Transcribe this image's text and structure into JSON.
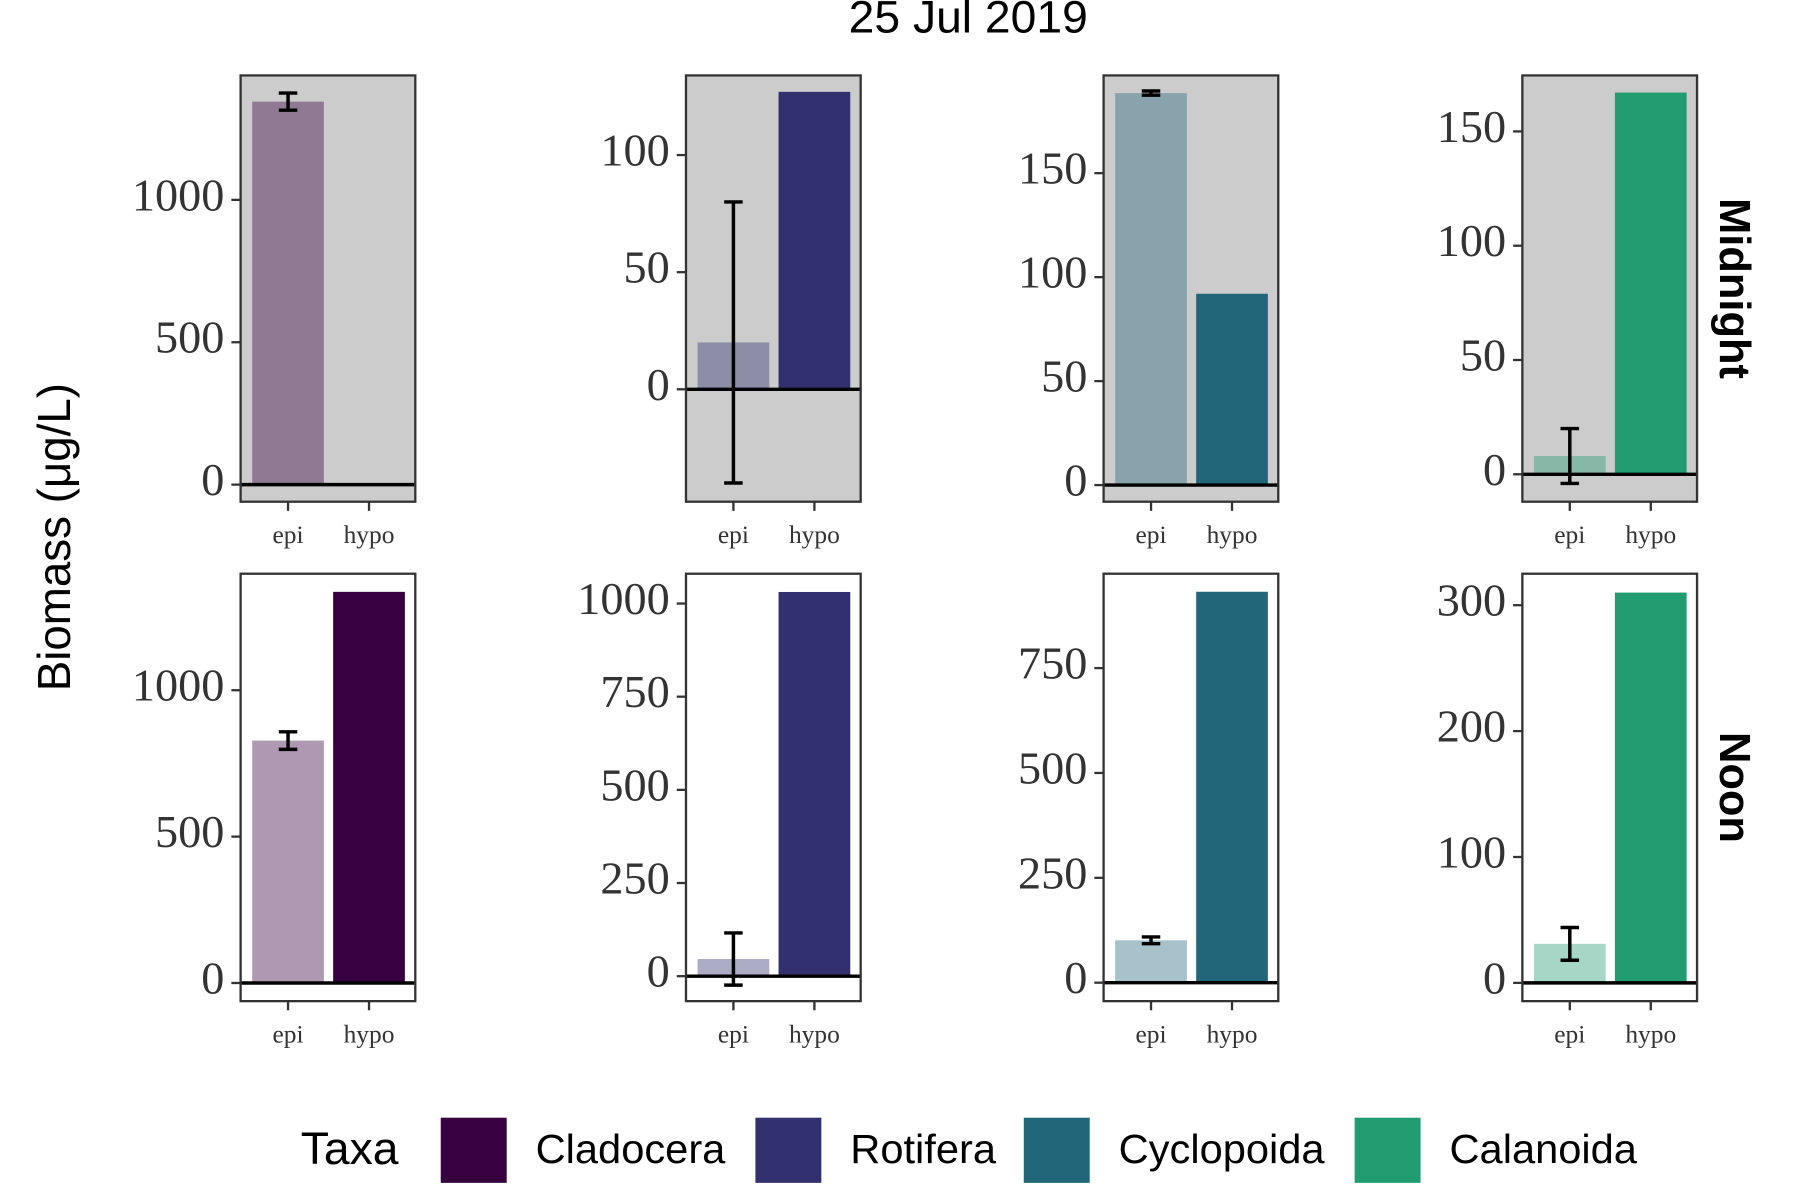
{
  "chart_data": {
    "type": "bar",
    "title": "25 Jul 2019",
    "y_label": "Biomass (μg/L)",
    "legend_title": "Taxa",
    "series": [
      {
        "name": "Cladocera",
        "color": "#37013f"
      },
      {
        "name": "Rotifera",
        "color": "#32306e"
      },
      {
        "name": "Cyclopoida",
        "color": "#22667a"
      },
      {
        "name": "Calanoida",
        "color": "#219b70"
      }
    ],
    "rows": [
      {
        "name": "Midnight",
        "background": "#cccccc",
        "panels": [
          {
            "categories": [
              "epi",
              "hypo"
            ],
            "values": [
              1345,
              0
            ],
            "errors": [
              30,
              null
            ],
            "ylim": [
              -60,
              1437
            ],
            "yticks": [
              0,
              500,
              1000
            ]
          },
          {
            "categories": [
              "epi",
              "hypo"
            ],
            "values": [
              20,
              127
            ],
            "errors": [
              60,
              null
            ],
            "ylim": [
              -48,
              134
            ],
            "yticks": [
              0,
              50,
              100
            ]
          },
          {
            "categories": [
              "epi",
              "hypo"
            ],
            "values": [
              188.5,
              92
            ],
            "errors": [
              1,
              null
            ],
            "ylim": [
              -8,
              197
            ],
            "yticks": [
              0,
              50,
              100,
              150
            ]
          },
          {
            "categories": [
              "epi",
              "hypo"
            ],
            "values": [
              8,
              167
            ],
            "errors": [
              12,
              null
            ],
            "ylim": [
              -12,
              174.5
            ],
            "yticks": [
              0,
              50,
              100,
              150
            ]
          }
        ]
      },
      {
        "name": "Noon",
        "background": "#ffffff",
        "panels": [
          {
            "categories": [
              "epi",
              "hypo"
            ],
            "values": [
              828,
              1336
            ],
            "errors": [
              30,
              null
            ],
            "ylim": [
              -62,
              1398
            ],
            "yticks": [
              0,
              500,
              1000
            ]
          },
          {
            "categories": [
              "epi",
              "hypo"
            ],
            "values": [
              46,
              1031
            ],
            "errors": [
              70,
              null
            ],
            "ylim": [
              -67,
              1080
            ],
            "yticks": [
              0,
              250,
              500,
              750,
              1000
            ]
          },
          {
            "categories": [
              "epi",
              "hypo"
            ],
            "values": [
              101,
              932
            ],
            "errors": [
              8,
              null
            ],
            "ylim": [
              -44,
              975
            ],
            "yticks": [
              0,
              250,
              500,
              750
            ]
          },
          {
            "categories": [
              "epi",
              "hypo"
            ],
            "values": [
              31,
              310
            ],
            "errors": [
              13,
              null
            ],
            "ylim": [
              -14.5,
              325
            ],
            "yticks": [
              0,
              100,
              200,
              300
            ]
          }
        ]
      }
    ]
  }
}
